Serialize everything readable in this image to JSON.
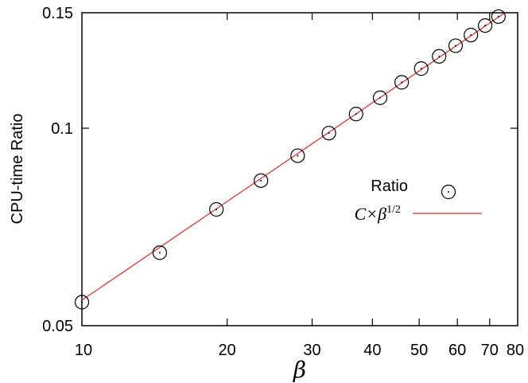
{
  "chart_data": {
    "type": "scatter",
    "xscale": "log",
    "yscale": "log",
    "xlim": [
      10,
      80
    ],
    "ylim": [
      0.05,
      0.15
    ],
    "xticks": [
      10,
      20,
      30,
      40,
      50,
      60,
      70,
      80
    ],
    "xtick_labels": [
      "10",
      "20",
      "30",
      "40",
      "50",
      "60",
      "70",
      "80"
    ],
    "yticks": [
      0.05,
      0.1,
      0.15
    ],
    "ytick_labels": [
      "0.05",
      "0.1",
      "0.15"
    ],
    "xlabel": "β",
    "ylabel": "CPU-time Ratio",
    "grid": false,
    "legend_position": "right",
    "series": [
      {
        "name": "Ratio",
        "kind": "points",
        "marker": "open-circle",
        "color": "#000000",
        "x": [
          10,
          14.5,
          19,
          23.5,
          28,
          32.5,
          37,
          41.5,
          46,
          50.5,
          55,
          59.5,
          64,
          68.5,
          73
        ],
        "y": [
          0.0543,
          0.0646,
          0.0752,
          0.0832,
          0.0908,
          0.0983,
          0.1051,
          0.1113,
          0.1175,
          0.1233,
          0.1287,
          0.1336,
          0.1387,
          0.1434,
          0.148
        ]
      },
      {
        "name": "C×β^{1/2}",
        "name_base": "C×β",
        "name_sup": "1/2",
        "kind": "line",
        "color": "#e32b2b",
        "formula": "C*sqrt(beta)",
        "C": 0.01729
      }
    ]
  }
}
